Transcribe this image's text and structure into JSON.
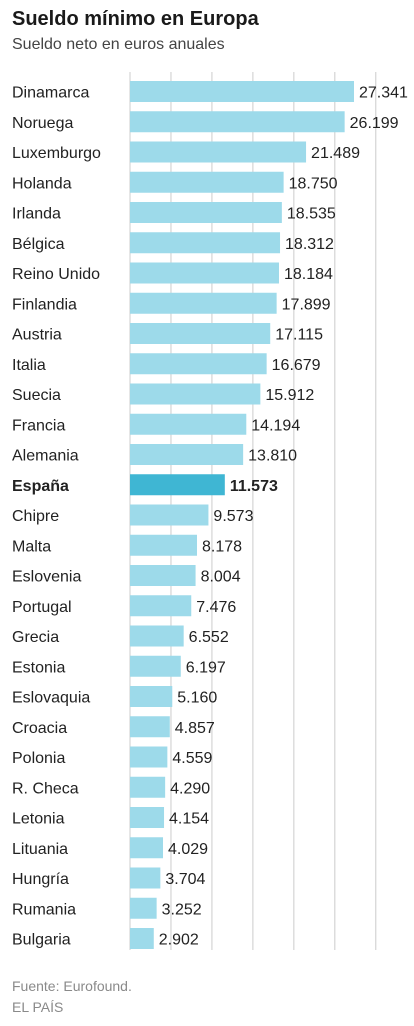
{
  "header": {
    "title": "Sueldo mínimo en Europa",
    "subtitle": "Sueldo neto en euros anuales"
  },
  "footer": {
    "source": "Fuente: Eurofound.",
    "publisher": "EL PAÍS"
  },
  "colors": {
    "bar": "#9ddaea",
    "highlight_bar": "#3fb6d3",
    "gridline": "#cccccc"
  },
  "chart_data": {
    "type": "bar",
    "orientation": "horizontal",
    "categories": [
      "Dinamarca",
      "Noruega",
      "Luxemburgo",
      "Holanda",
      "Irlanda",
      "Bélgica",
      "Reino Unido",
      "Finlandia",
      "Austria",
      "Italia",
      "Suecia",
      "Francia",
      "Alemania",
      "España",
      "Chipre",
      "Malta",
      "Eslovenia",
      "Portugal",
      "Grecia",
      "Estonia",
      "Eslovaquia",
      "Croacia",
      "Polonia",
      "R. Checa",
      "Letonia",
      "Lituania",
      "Hungría",
      "Rumania",
      "Bulgaria"
    ],
    "values": [
      27341,
      26199,
      21489,
      18750,
      18535,
      18312,
      18184,
      17899,
      17115,
      16679,
      15912,
      14194,
      13810,
      11573,
      9573,
      8178,
      8004,
      7476,
      6552,
      6197,
      5160,
      4857,
      4559,
      4290,
      4154,
      4029,
      3704,
      3252,
      2902
    ],
    "value_labels": [
      "27.341",
      "26.199",
      "21.489",
      "18.750",
      "18.535",
      "18.312",
      "18.184",
      "17.899",
      "17.115",
      "16.679",
      "15.912",
      "14.194",
      "13.810",
      "11.573",
      "9.573",
      "8.178",
      "8.004",
      "7.476",
      "6.552",
      "6.197",
      "5.160",
      "4.857",
      "4.559",
      "4.290",
      "4.154",
      "4.029",
      "3.704",
      "3.252",
      "2.902"
    ],
    "highlight": "España",
    "xlim": [
      0,
      27341
    ],
    "gridline_values": [
      5000,
      10000,
      15000,
      20000,
      25000,
      30000
    ],
    "grid": true,
    "title": "Sueldo mínimo en Europa",
    "subtitle": "Sueldo neto en euros anuales"
  }
}
